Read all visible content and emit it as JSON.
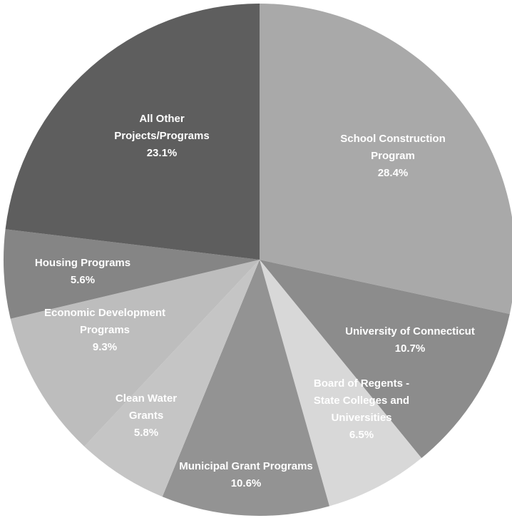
{
  "chart_data": {
    "type": "pie",
    "title": "",
    "slices": [
      {
        "lines": [
          "School Construction",
          "Program"
        ],
        "value": 28.4,
        "pct_label": "28.4%",
        "color": "#a9a9a9"
      },
      {
        "lines": [
          "University of Connecticut"
        ],
        "value": 10.7,
        "pct_label": "10.7%",
        "color": "#8c8c8c"
      },
      {
        "lines": [
          "Board of Regents -",
          "State Colleges and",
          "Universities"
        ],
        "value": 6.5,
        "pct_label": "6.5%",
        "color": "#d8d8d8"
      },
      {
        "lines": [
          "Municipal Grant Programs"
        ],
        "value": 10.6,
        "pct_label": "10.6%",
        "color": "#939393"
      },
      {
        "lines": [
          "Clean Water",
          "Grants"
        ],
        "value": 5.8,
        "pct_label": "5.8%",
        "color": "#c5c5c5"
      },
      {
        "lines": [
          "Economic Development",
          "Programs"
        ],
        "value": 9.3,
        "pct_label": "9.3%",
        "color": "#bdbdbd"
      },
      {
        "lines": [
          "Housing Programs"
        ],
        "value": 5.6,
        "pct_label": "5.6%",
        "color": "#858585"
      },
      {
        "lines": [
          "All Other",
          "Projects/Programs"
        ],
        "value": 23.1,
        "pct_label": "23.1%",
        "color": "#5e5e5e"
      }
    ]
  }
}
